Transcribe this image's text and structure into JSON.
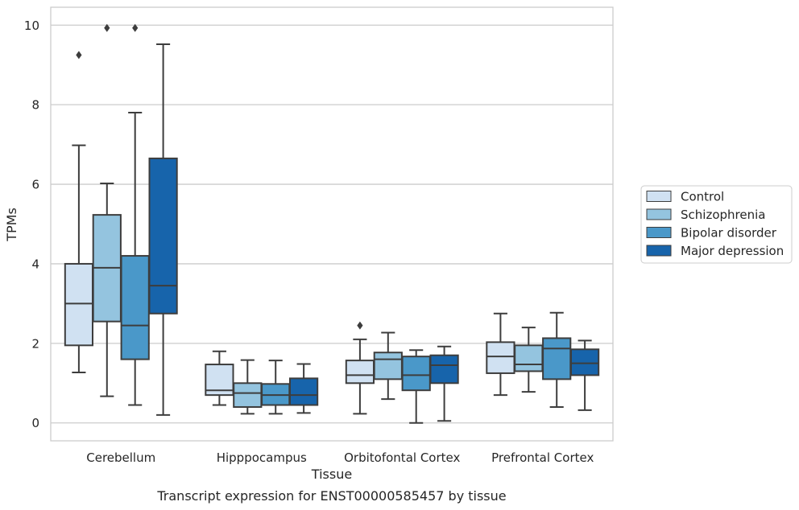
{
  "chart_data": {
    "type": "box",
    "title": "Transcript expression for ENST00000585457 by tissue",
    "xlabel": "Tissue",
    "ylabel": "TPMs",
    "ylim": [
      -0.45,
      10.45
    ],
    "yticks": [
      0,
      2,
      4,
      6,
      8,
      10
    ],
    "grid": "horizontal",
    "legend_position": "right",
    "categories": [
      "Cerebellum",
      "Hipppocampus",
      "Orbitofontal Cortex",
      "Prefrontal Cortex"
    ],
    "series": [
      {
        "name": "Control",
        "color": "#d0e1f2",
        "boxes": [
          {
            "whislo": 1.27,
            "q1": 1.95,
            "med": 3.0,
            "q3": 4.0,
            "whishi": 6.98,
            "fliers": [
              9.25
            ]
          },
          {
            "whislo": 0.45,
            "q1": 0.7,
            "med": 0.82,
            "q3": 1.47,
            "whishi": 1.8,
            "fliers": []
          },
          {
            "whislo": 0.23,
            "q1": 1.0,
            "med": 1.2,
            "q3": 1.57,
            "whishi": 2.1,
            "fliers": [
              2.45
            ]
          },
          {
            "whislo": 0.7,
            "q1": 1.25,
            "med": 1.67,
            "q3": 2.03,
            "whishi": 2.75,
            "fliers": []
          }
        ]
      },
      {
        "name": "Schizophrenia",
        "color": "#94c4df",
        "boxes": [
          {
            "whislo": 0.67,
            "q1": 2.55,
            "med": 3.9,
            "q3": 5.23,
            "whishi": 6.02,
            "fliers": [
              9.93
            ]
          },
          {
            "whislo": 0.23,
            "q1": 0.4,
            "med": 0.75,
            "q3": 1.0,
            "whishi": 1.58,
            "fliers": []
          },
          {
            "whislo": 0.6,
            "q1": 1.1,
            "med": 1.6,
            "q3": 1.77,
            "whishi": 2.27,
            "fliers": []
          },
          {
            "whislo": 0.78,
            "q1": 1.3,
            "med": 1.47,
            "q3": 1.95,
            "whishi": 2.4,
            "fliers": []
          }
        ]
      },
      {
        "name": "Bipolar disorder",
        "color": "#4a98c9",
        "boxes": [
          {
            "whislo": 0.45,
            "q1": 1.6,
            "med": 2.45,
            "q3": 4.2,
            "whishi": 7.8,
            "fliers": [
              9.93
            ]
          },
          {
            "whislo": 0.23,
            "q1": 0.45,
            "med": 0.7,
            "q3": 0.98,
            "whishi": 1.57,
            "fliers": []
          },
          {
            "whislo": 0.0,
            "q1": 0.82,
            "med": 1.2,
            "q3": 1.67,
            "whishi": 1.83,
            "fliers": []
          },
          {
            "whislo": 0.4,
            "q1": 1.1,
            "med": 1.87,
            "q3": 2.13,
            "whishi": 2.77,
            "fliers": []
          }
        ]
      },
      {
        "name": "Major depression",
        "color": "#1764ab",
        "boxes": [
          {
            "whislo": 0.2,
            "q1": 2.75,
            "med": 3.45,
            "q3": 6.65,
            "whishi": 9.52,
            "fliers": []
          },
          {
            "whislo": 0.25,
            "q1": 0.45,
            "med": 0.7,
            "q3": 1.12,
            "whishi": 1.48,
            "fliers": []
          },
          {
            "whislo": 0.05,
            "q1": 1.0,
            "med": 1.45,
            "q3": 1.7,
            "whishi": 1.92,
            "fliers": []
          },
          {
            "whislo": 0.32,
            "q1": 1.2,
            "med": 1.5,
            "q3": 1.85,
            "whishi": 2.07,
            "fliers": []
          }
        ]
      }
    ]
  },
  "style": {
    "grid_color": "#cccccc",
    "frame_color": "#cccccc",
    "line_color": "#3d3d3d",
    "text_color": "#262626"
  }
}
